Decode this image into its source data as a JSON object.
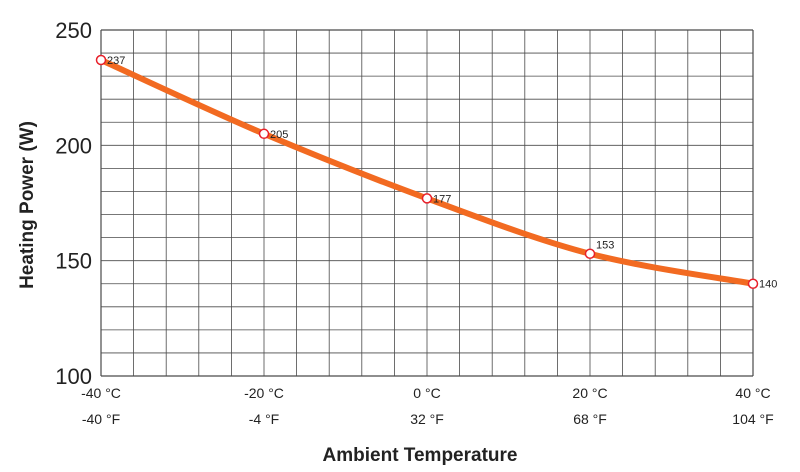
{
  "chart_data": {
    "type": "line",
    "title": "",
    "xlabel": "Ambient Temperature",
    "ylabel": "Heating Power (W)",
    "x_ticks_primary": [
      "-40 °C",
      "-20 °C",
      "0 °C",
      "20 °C",
      "40 °C"
    ],
    "x_ticks_secondary": [
      "-40 °F",
      "-4 °F",
      "32 °F",
      "68 °F",
      "104 °F"
    ],
    "y_ticks": [
      "100",
      "150",
      "200",
      "250"
    ],
    "ylim": [
      100,
      250
    ],
    "xlim": [
      -40,
      40
    ],
    "grid": true,
    "line_color": "#f26a21",
    "marker_color": "#e8202a",
    "series": [
      {
        "x": [
          -40,
          -20,
          0,
          20,
          40
        ],
        "values": [
          237,
          205,
          177,
          153,
          140
        ],
        "labels": [
          "237",
          "205",
          "177",
          "153",
          "140"
        ]
      }
    ]
  }
}
